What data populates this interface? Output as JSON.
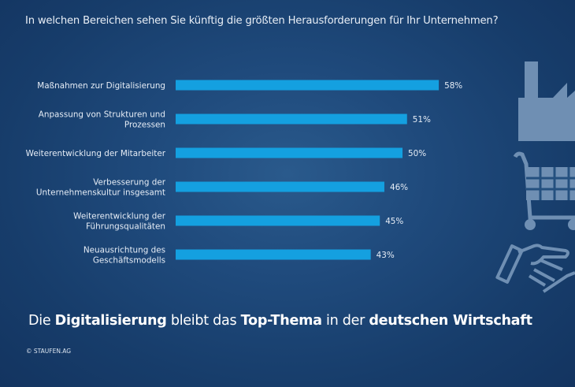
{
  "title": "In welchen Bereichen sehen Sie künftig die größten Herausforderungen für Ihr Unternehmen?",
  "chart_data": {
    "type": "bar",
    "orientation": "horizontal",
    "title": "In welchen Bereichen sehen Sie künftig die größten Herausforderungen für Ihr Unternehmen?",
    "categories": [
      [
        "Maßnahmen zur Digitalisierung"
      ],
      [
        "Anpassung von Strukturen und",
        "Prozessen"
      ],
      [
        "Weiterentwicklung der Mitarbeiter"
      ],
      [
        "Verbesserung der",
        "Unternehmenskultur insgesamt"
      ],
      [
        "Weiterentwicklung der",
        "Führungsqualitäten"
      ],
      [
        "Neuausrichtung des",
        "Geschäftsmodells"
      ]
    ],
    "values": [
      58,
      51,
      50,
      46,
      45,
      43
    ],
    "value_labels": [
      "58%",
      "51%",
      "50%",
      "46%",
      "45%",
      "43%"
    ],
    "unit": "%",
    "xlabel": "",
    "ylabel": "",
    "xlim": [
      0,
      100
    ],
    "grid": false,
    "legend": "none",
    "bar_color": "#14a0e0"
  },
  "headline": {
    "parts": [
      {
        "text": "Die ",
        "bold": false
      },
      {
        "text": "Digitalisierung",
        "bold": true
      },
      {
        "text": " bleibt das ",
        "bold": false
      },
      {
        "text": "Top-Thema",
        "bold": true
      },
      {
        "text": " in der ",
        "bold": false
      },
      {
        "text": "deutschen Wirtschaft",
        "bold": true
      }
    ]
  },
  "copyright": "© STAUFEN.AG",
  "decor_icons": [
    "factory-icon",
    "shopping-cart-icon",
    "handshake-icon"
  ],
  "colors": {
    "background": "#1f4a7c",
    "bar": "#14a0e0",
    "icon": "#6f8fb3",
    "text": "#ffffff"
  }
}
